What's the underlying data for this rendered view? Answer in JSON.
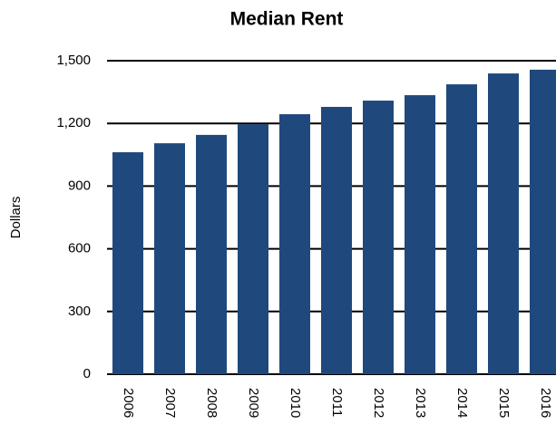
{
  "chart_data": {
    "type": "bar",
    "title": "Median Rent",
    "y_label": "Dollars",
    "categories": [
      "2006",
      "2007",
      "2008",
      "2009",
      "2010",
      "2011",
      "2012",
      "2013",
      "2014",
      "2015",
      "2016"
    ],
    "values": [
      1062,
      1105,
      1145,
      1196,
      1244,
      1279,
      1309,
      1335,
      1387,
      1439,
      1457
    ],
    "color": "#1f497d",
    "ylim": [
      0,
      1500
    ],
    "yticks": [
      0,
      300,
      600,
      900,
      {
        "value": 1200,
        "label": "1,200"
      },
      {
        "value": 1500,
        "label": "1,500"
      }
    ],
    "grid": true
  }
}
